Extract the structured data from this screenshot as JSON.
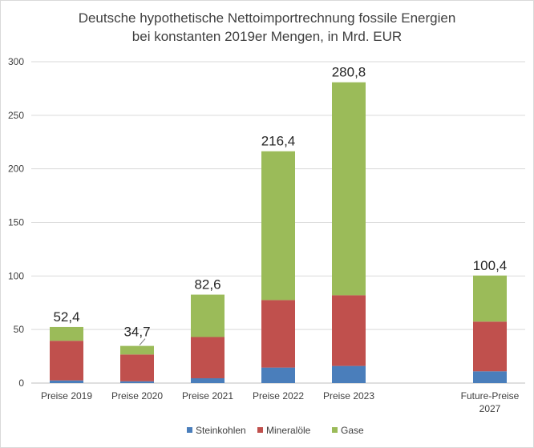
{
  "chart_data": {
    "type": "bar",
    "stacked": true,
    "title_lines": [
      "Deutsche hypothetische Nettoimportrechnung fossile Energien",
      "bei konstanten 2019er Mengen, in Mrd. EUR"
    ],
    "categories": [
      [
        "Preise 2019"
      ],
      [
        "Preise 2020"
      ],
      [
        "Preise 2021"
      ],
      [
        "Preise 2022"
      ],
      [
        "Preise 2023"
      ],
      [
        ""
      ],
      [
        "Future-Preise",
        "2027"
      ]
    ],
    "series": [
      {
        "name": "Steinkohlen",
        "color": "#4a7ebb",
        "values": [
          2.5,
          1.7,
          4.5,
          14.5,
          16,
          null,
          11
        ]
      },
      {
        "name": "Mineralöle",
        "color": "#c0504d",
        "values": [
          37,
          25,
          38.5,
          63,
          66,
          null,
          46.4
        ]
      },
      {
        "name": "Gase",
        "color": "#9bbb59",
        "values": [
          12.9,
          8,
          39.6,
          138.9,
          198.8,
          null,
          43
        ]
      }
    ],
    "totals": [
      "52,4",
      "34,7",
      "82,6",
      "216,4",
      "280,8",
      "",
      "100,4"
    ],
    "y_ticks": [
      "0",
      "50",
      "100",
      "150",
      "200",
      "250",
      "300"
    ],
    "ylim": [
      0,
      300
    ],
    "grid": true,
    "legend_position": "bottom"
  }
}
